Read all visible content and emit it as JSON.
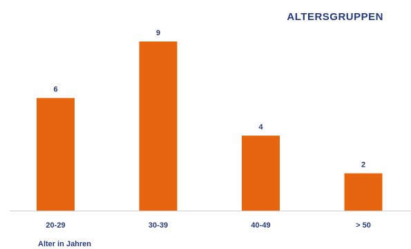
{
  "chart_data": {
    "type": "bar",
    "title": "ALTERSGRUPPEN",
    "xlabel": "Alter in Jahren",
    "ylabel": "",
    "categories": [
      "20-29",
      "30-39",
      "40-49",
      "> 50"
    ],
    "values": [
      6,
      9,
      4,
      2
    ],
    "ylim": [
      0,
      9
    ],
    "grid": false,
    "legend": "none",
    "colors": {
      "bar": "#e8650f",
      "text": "#253a7a",
      "axis": "#c8c8c8"
    }
  }
}
